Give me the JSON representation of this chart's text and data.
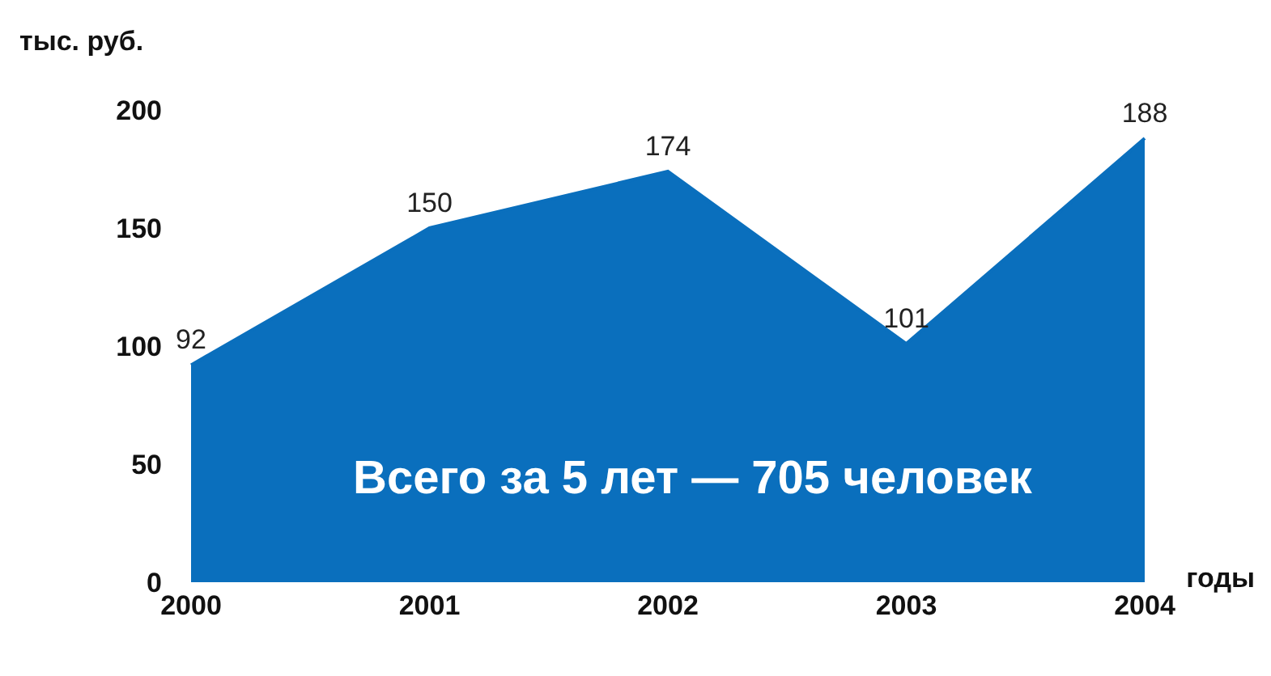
{
  "chart_data": {
    "type": "area",
    "ylabel": "тыс. руб.",
    "xlabel": "годы",
    "categories": [
      "2000",
      "2001",
      "2002",
      "2003",
      "2004"
    ],
    "series": [
      {
        "color": "#0a6fbd",
        "values": [
          92,
          150,
          174,
          101,
          188
        ]
      }
    ],
    "ylim": [
      0,
      200
    ],
    "yticks": [
      0,
      50,
      100,
      150,
      200
    ],
    "data_labels": true,
    "annotations": [
      "Всего за 5 лет — 705 человек"
    ]
  }
}
